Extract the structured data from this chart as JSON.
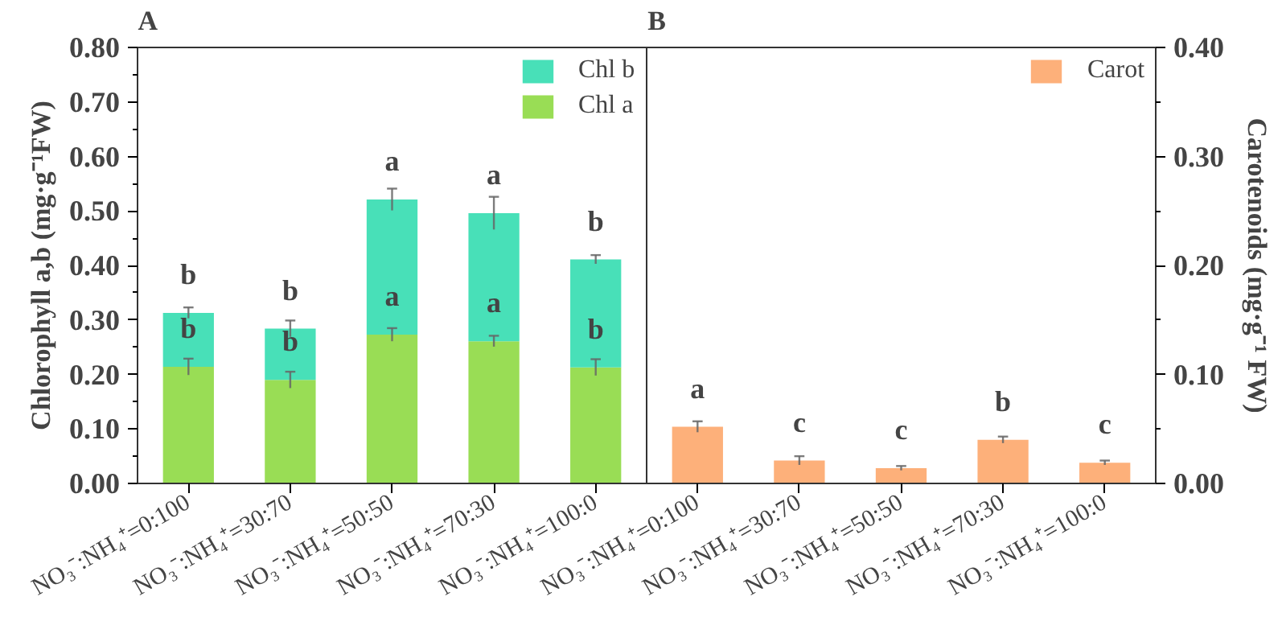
{
  "chart_data": [
    {
      "type": "bar",
      "title": "A",
      "ylabel": "Chlorophyll a,b (mg·g⁻¹FW)",
      "stacked": true,
      "legend": "top right",
      "grid": false,
      "categories": [
        "NO₃⁻:NH₄⁺=0:100",
        "NO₃⁻:NH₄⁺=30:70",
        "NO₃⁻:NH₄⁺=50:50",
        "NO₃⁻:NH₄⁺=70:30",
        "NO₃⁻:NH₄⁺=100:0"
      ],
      "ylim": [
        0,
        0.8
      ],
      "yticks": [
        {
          "value": 0,
          "label": "0.00"
        },
        {
          "value": 0.1,
          "label": "0.10"
        },
        {
          "value": 0.2,
          "label": "0.20"
        },
        {
          "value": 0.3,
          "label": "0.30"
        },
        {
          "value": 0.4,
          "label": "0.40"
        },
        {
          "value": 0.5,
          "label": "0.50"
        },
        {
          "value": 0.6,
          "label": "0.60"
        },
        {
          "value": 0.7,
          "label": "0.70"
        },
        {
          "value": 0.8,
          "label": "0.80"
        }
      ],
      "series": [
        {
          "name": "Chl a",
          "color": "#99dd55",
          "values": [
            0.214,
            0.19,
            0.273,
            0.261,
            0.213
          ],
          "errors": [
            0.015,
            0.015,
            0.012,
            0.01,
            0.015
          ],
          "value_labels": [
            "b",
            "b",
            "a",
            "a",
            "b"
          ]
        },
        {
          "name": "Chl b",
          "color": "#48e0b8",
          "values": [
            0.099,
            0.094,
            0.248,
            0.235,
            0.198
          ],
          "errors": [
            0.01,
            0.015,
            0.02,
            0.03,
            0.008
          ],
          "value_labels": [
            "b",
            "b",
            "a",
            "a",
            "b"
          ]
        }
      ]
    },
    {
      "type": "bar",
      "title": "B",
      "y2label": "Carotenoids (mg·g⁻¹ FW)",
      "legend": "top right",
      "grid": false,
      "categories": [
        "NO₃⁻:NH₄⁺=0:100",
        "NO₃⁻:NH₄⁺=30:70",
        "NO₃⁻:NH₄⁺=50:50",
        "NO₃⁻:NH₄⁺=70:30",
        "NO₃⁻:NH₄⁺=100:0"
      ],
      "y2lim": [
        0,
        0.4
      ],
      "y2ticks": [
        {
          "value": 0,
          "label": "0.00"
        },
        {
          "value": 0.1,
          "label": "0.10"
        },
        {
          "value": 0.2,
          "label": "0.20"
        },
        {
          "value": 0.3,
          "label": "0.30"
        },
        {
          "value": 0.4,
          "label": "0.40"
        }
      ],
      "series": [
        {
          "name": "Carot",
          "color": "#fdb07a",
          "axis": "y2",
          "values": [
            0.052,
            0.021,
            0.014,
            0.04,
            0.019
          ],
          "errors": [
            0.005,
            0.004,
            0.002,
            0.003,
            0.002
          ],
          "value_labels": [
            "a",
            "c",
            "c",
            "b",
            "c"
          ]
        }
      ]
    }
  ]
}
